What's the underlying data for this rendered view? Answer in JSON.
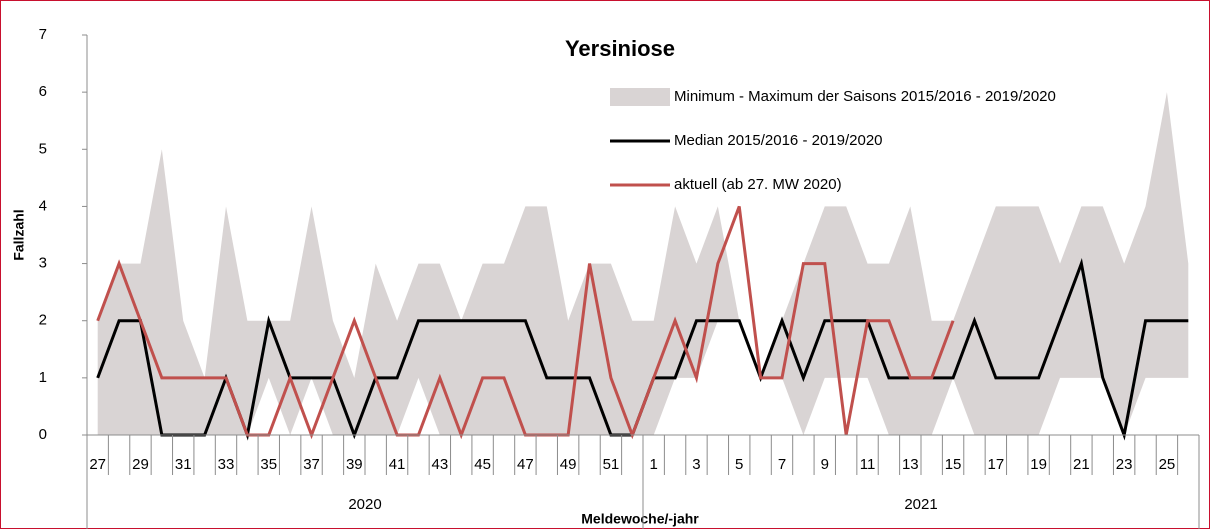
{
  "chart_data": {
    "type": "line",
    "title": "Yersiniose",
    "y_label": "Fallzahl",
    "x_label": "Meldewoche/-jahr",
    "categories": [
      "27",
      null,
      "29",
      null,
      "31",
      null,
      "33",
      null,
      "35",
      null,
      "37",
      null,
      "39",
      null,
      "41",
      null,
      "43",
      null,
      "45",
      null,
      "47",
      null,
      "49",
      null,
      "51",
      null,
      "1",
      null,
      "3",
      null,
      "5",
      null,
      "7",
      null,
      "9",
      null,
      "11",
      null,
      "13",
      null,
      "15",
      null,
      "17",
      null,
      "19",
      null,
      "21",
      null,
      "23",
      null,
      "25",
      null
    ],
    "groups": [
      {
        "label": "2020",
        "count": 26
      },
      {
        "label": "2021",
        "count": 26
      }
    ],
    "ylim": [
      0,
      7
    ],
    "yticks": [
      0,
      1,
      2,
      3,
      4,
      5,
      6,
      7
    ],
    "series": [
      {
        "name": "Minimum - Maximum der Saisons 2015/2016 - 2019/2020",
        "color": "#d9d4d4",
        "kind": "band",
        "min": [
          0,
          0,
          0,
          0,
          0,
          0,
          0,
          0,
          1,
          0,
          1,
          0,
          0,
          0,
          0,
          1,
          0,
          0,
          0,
          0,
          0,
          0,
          0,
          0,
          0,
          0,
          0,
          1,
          1,
          2,
          2,
          1,
          1,
          0,
          1,
          1,
          1,
          0,
          0,
          0,
          1,
          0,
          0,
          0,
          0,
          1,
          1,
          1,
          0,
          1,
          1,
          1
        ],
        "max": [
          2,
          3,
          3,
          5,
          2,
          1,
          4,
          2,
          2,
          2,
          4,
          2,
          1,
          3,
          2,
          3,
          3,
          2,
          3,
          3,
          4,
          4,
          2,
          3,
          3,
          2,
          2,
          4,
          3,
          4,
          2,
          1,
          2,
          3,
          4,
          4,
          3,
          3,
          4,
          2,
          2,
          3,
          4,
          4,
          4,
          3,
          4,
          4,
          3,
          4,
          6,
          3
        ]
      },
      {
        "name": "Median 2015/2016 - 2019/2020",
        "color": "#000000",
        "kind": "line",
        "values": [
          1,
          2,
          2,
          0,
          0,
          0,
          1,
          0,
          2,
          1,
          1,
          1,
          0,
          1,
          1,
          2,
          2,
          2,
          2,
          2,
          2,
          1,
          1,
          1,
          0,
          0,
          1,
          1,
          2,
          2,
          2,
          1,
          2,
          1,
          2,
          2,
          2,
          1,
          1,
          1,
          1,
          2,
          1,
          1,
          1,
          2,
          3,
          1,
          0,
          2,
          2,
          2
        ]
      },
      {
        "name": "aktuell (ab 27. MW 2020)",
        "color": "#c0504d",
        "kind": "line",
        "values": [
          2,
          3,
          2,
          1,
          1,
          1,
          1,
          0,
          0,
          1,
          0,
          1,
          2,
          1,
          0,
          0,
          1,
          0,
          1,
          1,
          0,
          0,
          0,
          3,
          1,
          0,
          1,
          2,
          1,
          3,
          4,
          1,
          1,
          3,
          3,
          0,
          2,
          2,
          1,
          1,
          2,
          null,
          null,
          null,
          null,
          null,
          null,
          null,
          null,
          null,
          null,
          null
        ]
      }
    ]
  }
}
